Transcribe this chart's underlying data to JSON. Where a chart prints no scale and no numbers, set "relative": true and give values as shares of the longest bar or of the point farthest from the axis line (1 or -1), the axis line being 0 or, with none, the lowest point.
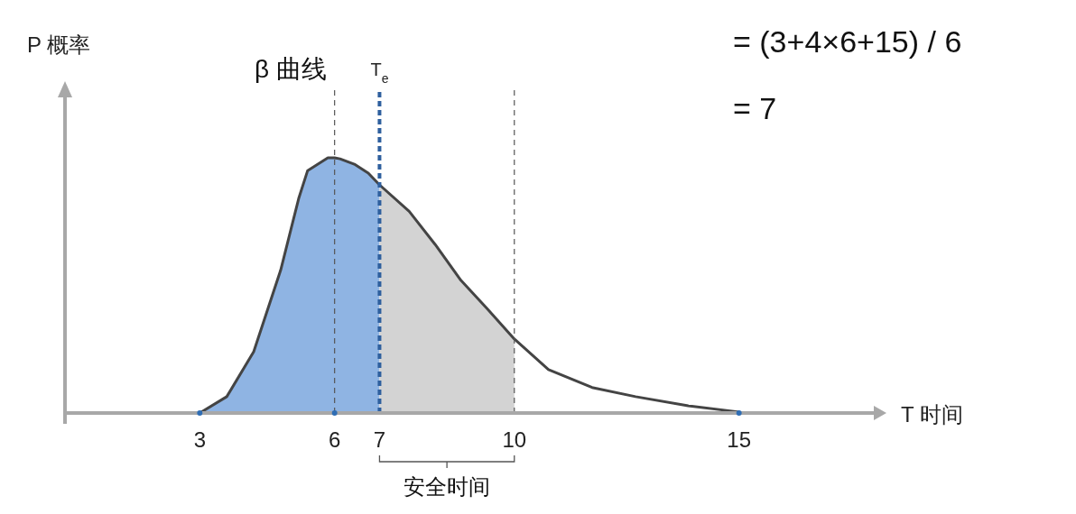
{
  "chart_data": {
    "type": "area",
    "relative": true,
    "xlabel": "T 时间",
    "ylabel": "P 概率",
    "xlim": [
      0,
      18
    ],
    "xticks": [
      3,
      6,
      7,
      10,
      15
    ],
    "tick_labels": "x",
    "annotations": [
      "β 曲线",
      "= (3+4×6+15) / 6",
      "= 7",
      "安全时间"
    ],
    "series": [
      {
        "color": "#8fb4e3",
        "x": [
          3,
          3.6,
          4.2,
          4.8,
          5.2,
          5.4,
          5.85,
          6,
          6.12,
          6.44,
          6.75,
          7
        ],
        "values": [
          0,
          0.064,
          0.24,
          0.56,
          0.84,
          0.95,
          1,
          1,
          0.996,
          0.975,
          0.94,
          0.894
        ]
      },
      {
        "color": "#d3d3d3",
        "x": [
          7,
          7.66,
          8.24,
          8.81,
          9.39,
          10
        ],
        "values": [
          0.894,
          0.79,
          0.66,
          0.52,
          0.41,
          0.29
        ]
      },
      {
        "type": "line",
        "color": "#444444",
        "x": [
          3,
          3.6,
          4.2,
          4.8,
          5.2,
          5.4,
          5.85,
          6,
          6.12,
          6.44,
          6.75,
          7,
          7.66,
          8.24,
          8.81,
          9.39,
          10,
          10.76,
          11.73,
          12.7,
          13.87,
          15
        ],
        "values": [
          0,
          0.064,
          0.24,
          0.56,
          0.84,
          0.95,
          1,
          1,
          0.996,
          0.975,
          0.94,
          0.894,
          0.79,
          0.66,
          0.52,
          0.41,
          0.29,
          0.17,
          0.1,
          0.064,
          0.028,
          0.004
        ]
      },
      {
        "type": "scatter",
        "color": "#2e6db4",
        "marker": "circle",
        "x": [
          3,
          6,
          15
        ],
        "values": [
          0,
          0,
          0
        ]
      }
    ],
    "ref_lines": [
      {
        "axis": "x",
        "value": 6,
        "color": "#555555",
        "line_style": "dashed"
      },
      {
        "axis": "x",
        "value": 7,
        "color": "#2e5f9e",
        "line_style": "dashed",
        "label": "T$_{e}$"
      },
      {
        "axis": "x",
        "value": 10,
        "color": "#555555",
        "line_style": "dashed"
      }
    ]
  }
}
